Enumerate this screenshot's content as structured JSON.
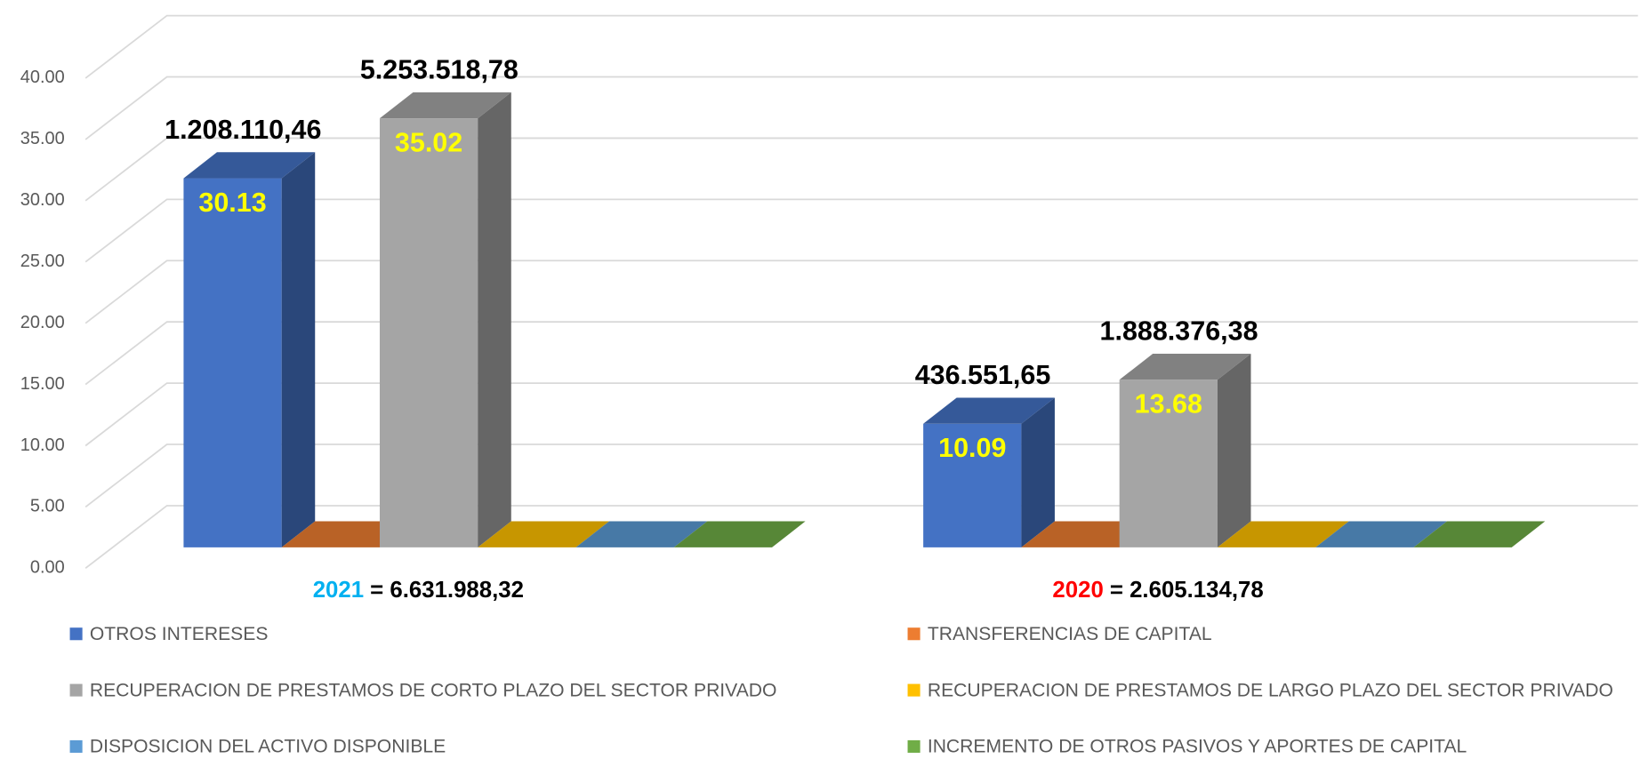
{
  "chart_data": {
    "type": "bar3d",
    "categories": [
      "2021",
      "2020"
    ],
    "category_colors": [
      "#00b0f0",
      "#ff0000"
    ],
    "totals": [
      "= 6.631.988,32",
      "= 2.605.134,78"
    ],
    "series": [
      {
        "name": "OTROS INTERESES",
        "color": "#4472c4",
        "values": [
          30.13,
          10.09
        ],
        "annotations": [
          "1.208.110,46",
          "436.551,65"
        ]
      },
      {
        "name": "TRANSFERENCIAS DE CAPITAL",
        "color": "#ed7d31",
        "values": [
          0,
          0
        ]
      },
      {
        "name": "RECUPERACION DE PRESTAMOS DE CORTO PLAZO DEL SECTOR PRIVADO",
        "color": "#a5a5a5",
        "values": [
          35.02,
          13.68
        ],
        "annotations": [
          "5.253.518,78",
          "1.888.376,38"
        ]
      },
      {
        "name": "RECUPERACION DE PRESTAMOS DE LARGO PLAZO DEL SECTOR PRIVADO",
        "color": "#ffc000",
        "values": [
          0,
          0
        ]
      },
      {
        "name": "DISPOSICION DEL ACTIVO DISPONIBLE",
        "color": "#5b9bd5",
        "values": [
          0,
          0
        ]
      },
      {
        "name": "INCREMENTO DE OTROS PASIVOS Y APORTES DE CAPITAL",
        "color": "#70ad47",
        "values": [
          0,
          0
        ]
      }
    ],
    "ylim": [
      0,
      40
    ],
    "yticks": [
      {
        "value": 0,
        "label": "0.00"
      },
      {
        "value": 5,
        "label": "5.00"
      },
      {
        "value": 10,
        "label": "10.00"
      },
      {
        "value": 15,
        "label": "15.00"
      },
      {
        "value": 20,
        "label": "20.00"
      },
      {
        "value": 25,
        "label": "25.00"
      },
      {
        "value": 30,
        "label": "30.00"
      },
      {
        "value": 35,
        "label": "35.00"
      },
      {
        "value": 40,
        "label": "40.00"
      }
    ],
    "grid": true,
    "value_label_color": "#ffff00"
  }
}
